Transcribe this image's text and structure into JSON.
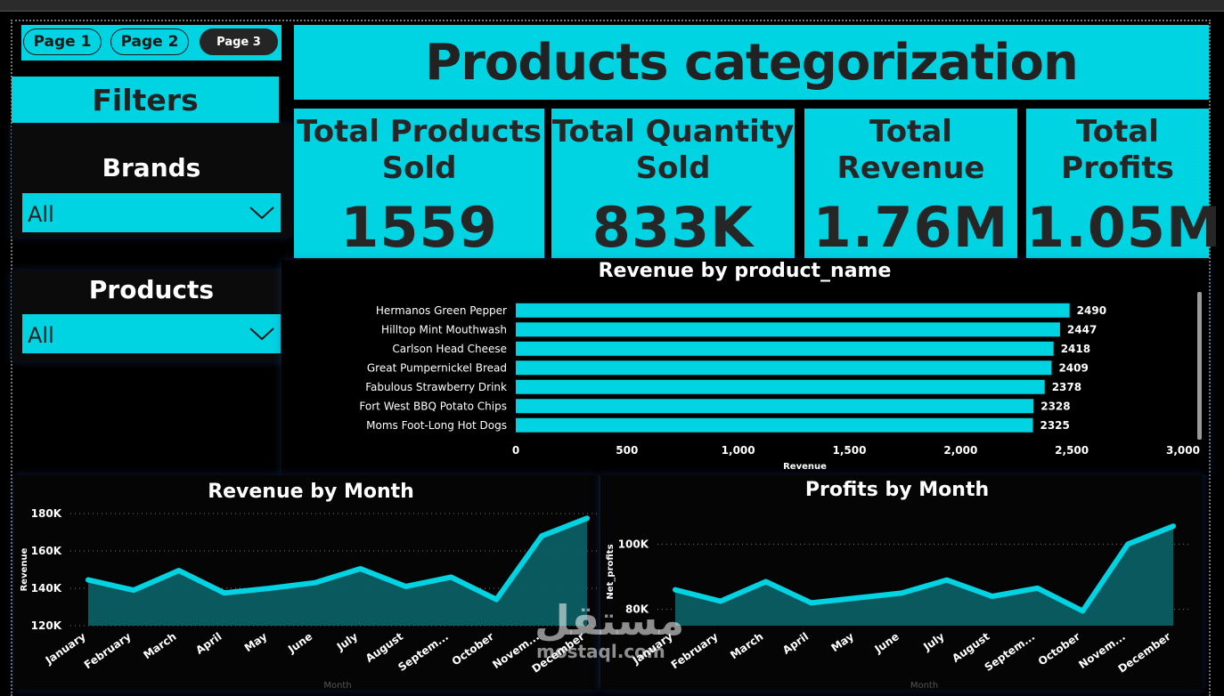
{
  "nav": {
    "page1": "Page 1",
    "page2": "Page 2",
    "page3": "Page 3"
  },
  "header": {
    "title": "Products categorization"
  },
  "filters": {
    "title": "Filters",
    "brands": {
      "label": "Brands",
      "value": "All"
    },
    "products": {
      "label": "Products",
      "value": "All"
    }
  },
  "kpis": [
    {
      "label_line1": "Total Products",
      "label_line2": "Sold",
      "value": "1559"
    },
    {
      "label_line1": "Total Quantity",
      "label_line2": "Sold",
      "value": "833K"
    },
    {
      "label_line1": "Total",
      "label_line2": "Revenue",
      "value": "1.76M"
    },
    {
      "label_line1": "Total",
      "label_line2": "Profits",
      "value": "1.05M"
    }
  ],
  "watermark": {
    "arabic": "مستقل",
    "latin": "mostaql.com"
  },
  "colors": {
    "accent": "#00d3e2",
    "area_fill": "#0a5e63",
    "background": "#000000"
  },
  "chart_data": [
    {
      "type": "bar",
      "orientation": "horizontal",
      "title": "Revenue by product_name",
      "xlabel": "Revenue",
      "ylabel": "",
      "xlim": [
        0,
        3000
      ],
      "xticks": [
        "0",
        "500",
        "1,000",
        "1,500",
        "2,000",
        "2,500",
        "3,000"
      ],
      "categories": [
        "Hermanos Green Pepper",
        "Hilltop Mint Mouthwash",
        "Carlson Head Cheese",
        "Great Pumpernickel Bread",
        "Fabulous Strawberry Drink",
        "Fort West BBQ Potato Chips",
        "Moms Foot-Long Hot Dogs"
      ],
      "values": [
        2490,
        2447,
        2418,
        2409,
        2378,
        2328,
        2325
      ]
    },
    {
      "type": "area",
      "title": "Revenue by Month",
      "xlabel": "Month",
      "ylabel": "Revenue",
      "ylim": [
        120000,
        180000
      ],
      "yticks": [
        "120K",
        "140K",
        "160K",
        "180K"
      ],
      "categories": [
        "January",
        "February",
        "March",
        "April",
        "May",
        "June",
        "July",
        "August",
        "Septem...",
        "October",
        "Novem...",
        "December"
      ],
      "values": [
        144500,
        139000,
        149500,
        137500,
        140000,
        143000,
        150500,
        141000,
        146000,
        134000,
        168000,
        177500
      ]
    },
    {
      "type": "area",
      "title": "Profits by Month",
      "xlabel": "Month",
      "ylabel": "Net_profits",
      "ylim": [
        75000,
        108000
      ],
      "yticks": [
        "80K",
        "100K"
      ],
      "categories": [
        "January",
        "February",
        "March",
        "April",
        "May",
        "June",
        "July",
        "August",
        "Septem...",
        "October",
        "Novem...",
        "December"
      ],
      "values": [
        86000,
        82500,
        88500,
        82000,
        83500,
        85000,
        89000,
        84000,
        86500,
        79500,
        100000,
        105500
      ]
    }
  ]
}
